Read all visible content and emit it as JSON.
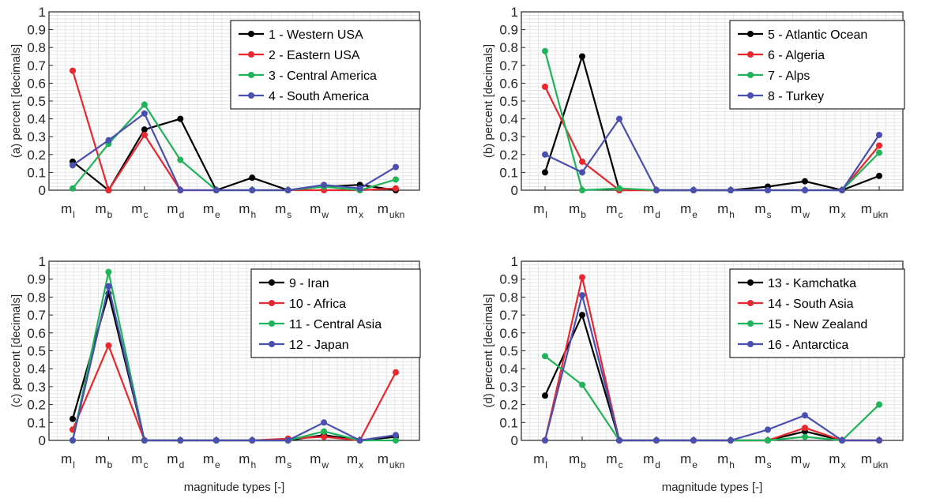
{
  "colors": {
    "black": "#000000",
    "red": "#e8282e",
    "green": "#1fb45a",
    "blue": "#4a4fb0",
    "grid": "#e6e6e6",
    "axis": "#262626"
  },
  "chart_data": [
    {
      "type": "line",
      "panel": "(a)",
      "ylabel": "(a) percent [decimals]",
      "xlabel": "",
      "ylim": [
        0,
        1
      ],
      "yticks": [
        "0",
        "0.1",
        "0.2",
        "0.3",
        "0.4",
        "0.5",
        "0.6",
        "0.7",
        "0.8",
        "0.9",
        "1"
      ],
      "categories": [
        {
          "base": "m",
          "sub": "l"
        },
        {
          "base": "m",
          "sub": "b"
        },
        {
          "base": "m",
          "sub": "c"
        },
        {
          "base": "m",
          "sub": "d"
        },
        {
          "base": "m",
          "sub": "e"
        },
        {
          "base": "m",
          "sub": "h"
        },
        {
          "base": "m",
          "sub": "s"
        },
        {
          "base": "m",
          "sub": "w"
        },
        {
          "base": "m",
          "sub": "x"
        },
        {
          "base": "m",
          "sub": "ukn"
        }
      ],
      "grid": true,
      "legend_position": "top-right",
      "series": [
        {
          "name": "1 - Western USA",
          "color": "#000000",
          "values": [
            0.16,
            0.0,
            0.34,
            0.4,
            0.0,
            0.07,
            0.0,
            0.02,
            0.03,
            0.0
          ]
        },
        {
          "name": "2 - Eastern USA",
          "color": "#e8282e",
          "values": [
            0.67,
            0.0,
            0.31,
            0.0,
            0.0,
            0.0,
            0.0,
            0.0,
            0.0,
            0.01
          ]
        },
        {
          "name": "3 - Central America",
          "color": "#1fb45a",
          "values": [
            0.01,
            0.26,
            0.48,
            0.17,
            0.0,
            0.0,
            0.0,
            0.02,
            0.0,
            0.06
          ]
        },
        {
          "name": "4 - South America",
          "color": "#4a4fb0",
          "values": [
            0.14,
            0.28,
            0.43,
            0.0,
            0.0,
            0.0,
            0.0,
            0.03,
            0.01,
            0.13
          ]
        }
      ]
    },
    {
      "type": "line",
      "panel": "(b)",
      "ylabel": "(b) percent [decimals]",
      "xlabel": "",
      "ylim": [
        0,
        1
      ],
      "yticks": [
        "0",
        "0.1",
        "0.2",
        "0.3",
        "0.4",
        "0.5",
        "0.6",
        "0.7",
        "0.8",
        "0.9",
        "1"
      ],
      "categories": [
        {
          "base": "m",
          "sub": "l"
        },
        {
          "base": "m",
          "sub": "b"
        },
        {
          "base": "m",
          "sub": "c"
        },
        {
          "base": "m",
          "sub": "d"
        },
        {
          "base": "m",
          "sub": "e"
        },
        {
          "base": "m",
          "sub": "h"
        },
        {
          "base": "m",
          "sub": "s"
        },
        {
          "base": "m",
          "sub": "w"
        },
        {
          "base": "m",
          "sub": "x"
        },
        {
          "base": "m",
          "sub": "ukn"
        }
      ],
      "grid": true,
      "legend_position": "top-right",
      "series": [
        {
          "name": "5 - Atlantic Ocean",
          "color": "#000000",
          "values": [
            0.1,
            0.75,
            0.0,
            0.0,
            0.0,
            0.0,
            0.02,
            0.05,
            0.0,
            0.08
          ]
        },
        {
          "name": "6 - Algeria",
          "color": "#e8282e",
          "values": [
            0.58,
            0.16,
            0.0,
            0.0,
            0.0,
            0.0,
            0.0,
            0.0,
            0.0,
            0.25
          ]
        },
        {
          "name": "7 - Alps",
          "color": "#1fb45a",
          "values": [
            0.78,
            0.0,
            0.01,
            0.0,
            0.0,
            0.0,
            0.0,
            0.0,
            0.0,
            0.21
          ]
        },
        {
          "name": "8 - Turkey",
          "color": "#4a4fb0",
          "values": [
            0.2,
            0.1,
            0.4,
            0.0,
            0.0,
            0.0,
            0.0,
            0.0,
            0.0,
            0.31
          ]
        }
      ]
    },
    {
      "type": "line",
      "panel": "(c)",
      "ylabel": "(c) percent [decimals]",
      "xlabel": "magnitude types [-]",
      "ylim": [
        0,
        1
      ],
      "yticks": [
        "0",
        "0.1",
        "0.2",
        "0.3",
        "0.4",
        "0.5",
        "0.6",
        "0.7",
        "0.8",
        "0.9",
        "1"
      ],
      "categories": [
        {
          "base": "m",
          "sub": "l"
        },
        {
          "base": "m",
          "sub": "b"
        },
        {
          "base": "m",
          "sub": "c"
        },
        {
          "base": "m",
          "sub": "d"
        },
        {
          "base": "m",
          "sub": "e"
        },
        {
          "base": "m",
          "sub": "h"
        },
        {
          "base": "m",
          "sub": "s"
        },
        {
          "base": "m",
          "sub": "w"
        },
        {
          "base": "m",
          "sub": "x"
        },
        {
          "base": "m",
          "sub": "ukn"
        }
      ],
      "grid": true,
      "legend_position": "top-right",
      "series": [
        {
          "name": " 9 - Iran",
          "color": "#000000",
          "values": [
            0.12,
            0.82,
            0.0,
            0.0,
            0.0,
            0.0,
            0.0,
            0.03,
            0.0,
            0.02
          ]
        },
        {
          "name": "10 - Africa",
          "color": "#e8282e",
          "values": [
            0.06,
            0.53,
            0.0,
            0.0,
            0.0,
            0.0,
            0.01,
            0.02,
            0.0,
            0.38
          ]
        },
        {
          "name": "11 - Central Asia",
          "color": "#1fb45a",
          "values": [
            0.0,
            0.94,
            0.0,
            0.0,
            0.0,
            0.0,
            0.0,
            0.05,
            0.0,
            0.0
          ]
        },
        {
          "name": "12 - Japan",
          "color": "#4a4fb0",
          "values": [
            0.0,
            0.86,
            0.0,
            0.0,
            0.0,
            0.0,
            0.0,
            0.1,
            0.0,
            0.03
          ]
        }
      ]
    },
    {
      "type": "line",
      "panel": "(d)",
      "ylabel": "(d) percent [decimals]",
      "xlabel": "magnitude types [-]",
      "ylim": [
        0,
        1
      ],
      "yticks": [
        "0",
        "0.1",
        "0.2",
        "0.3",
        "0.4",
        "0.5",
        "0.6",
        "0.7",
        "0.8",
        "0.9",
        "1"
      ],
      "categories": [
        {
          "base": "m",
          "sub": "l"
        },
        {
          "base": "m",
          "sub": "b"
        },
        {
          "base": "m",
          "sub": "c"
        },
        {
          "base": "m",
          "sub": "d"
        },
        {
          "base": "m",
          "sub": "e"
        },
        {
          "base": "m",
          "sub": "h"
        },
        {
          "base": "m",
          "sub": "s"
        },
        {
          "base": "m",
          "sub": "w"
        },
        {
          "base": "m",
          "sub": "x"
        },
        {
          "base": "m",
          "sub": "ukn"
        }
      ],
      "grid": true,
      "legend_position": "top-right",
      "series": [
        {
          "name": "13 - Kamchatka",
          "color": "#000000",
          "values": [
            0.25,
            0.7,
            0.0,
            0.0,
            0.0,
            0.0,
            0.0,
            0.05,
            0.0,
            0.0
          ]
        },
        {
          "name": "14 - South Asia",
          "color": "#e8282e",
          "values": [
            0.0,
            0.91,
            0.0,
            0.0,
            0.0,
            0.0,
            0.0,
            0.07,
            0.0,
            0.0
          ]
        },
        {
          "name": "15 - New Zealand",
          "color": "#1fb45a",
          "values": [
            0.47,
            0.31,
            0.0,
            0.0,
            0.0,
            0.0,
            0.0,
            0.02,
            0.0,
            0.2
          ]
        },
        {
          "name": "16 - Antarctica",
          "color": "#4a4fb0",
          "values": [
            0.0,
            0.81,
            0.0,
            0.0,
            0.0,
            0.0,
            0.06,
            0.14,
            0.0,
            0.0
          ]
        }
      ]
    }
  ]
}
